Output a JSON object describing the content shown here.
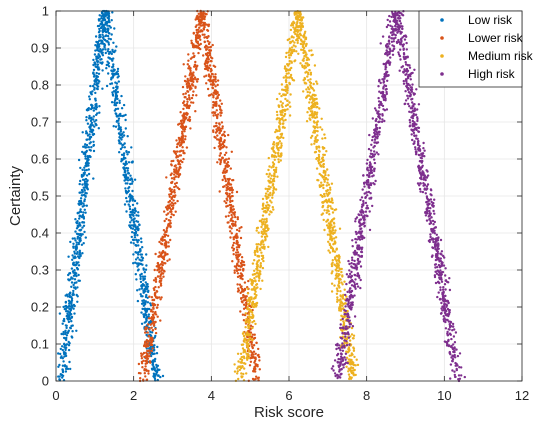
{
  "chart_data": {
    "type": "scatter",
    "title": "",
    "xlabel": "Risk score",
    "ylabel": "Certainty",
    "xlim": [
      0,
      12
    ],
    "ylim": [
      0,
      1
    ],
    "xticks": [
      "0",
      "2",
      "4",
      "6",
      "8",
      "10",
      "12"
    ],
    "yticks": [
      "0",
      "0.1",
      "0.2",
      "0.3",
      "0.4",
      "0.5",
      "0.6",
      "0.7",
      "0.8",
      "0.9",
      "1"
    ],
    "grid": true,
    "legend_position": "top-right",
    "series": [
      {
        "name": "Low risk",
        "color": "#0072BD",
        "peak_x": 1.25,
        "x_min": 0.05,
        "x_max": 2.7
      },
      {
        "name": "Lower risk",
        "color": "#D95319",
        "peak_x": 3.75,
        "x_min": 2.1,
        "x_max": 5.3
      },
      {
        "name": "Medium risk",
        "color": "#EDB120",
        "peak_x": 6.25,
        "x_min": 4.6,
        "x_max": 7.8
      },
      {
        "name": "High risk",
        "color": "#7E2F8E",
        "peak_x": 8.75,
        "x_min": 7.1,
        "x_max": 10.5
      }
    ]
  }
}
